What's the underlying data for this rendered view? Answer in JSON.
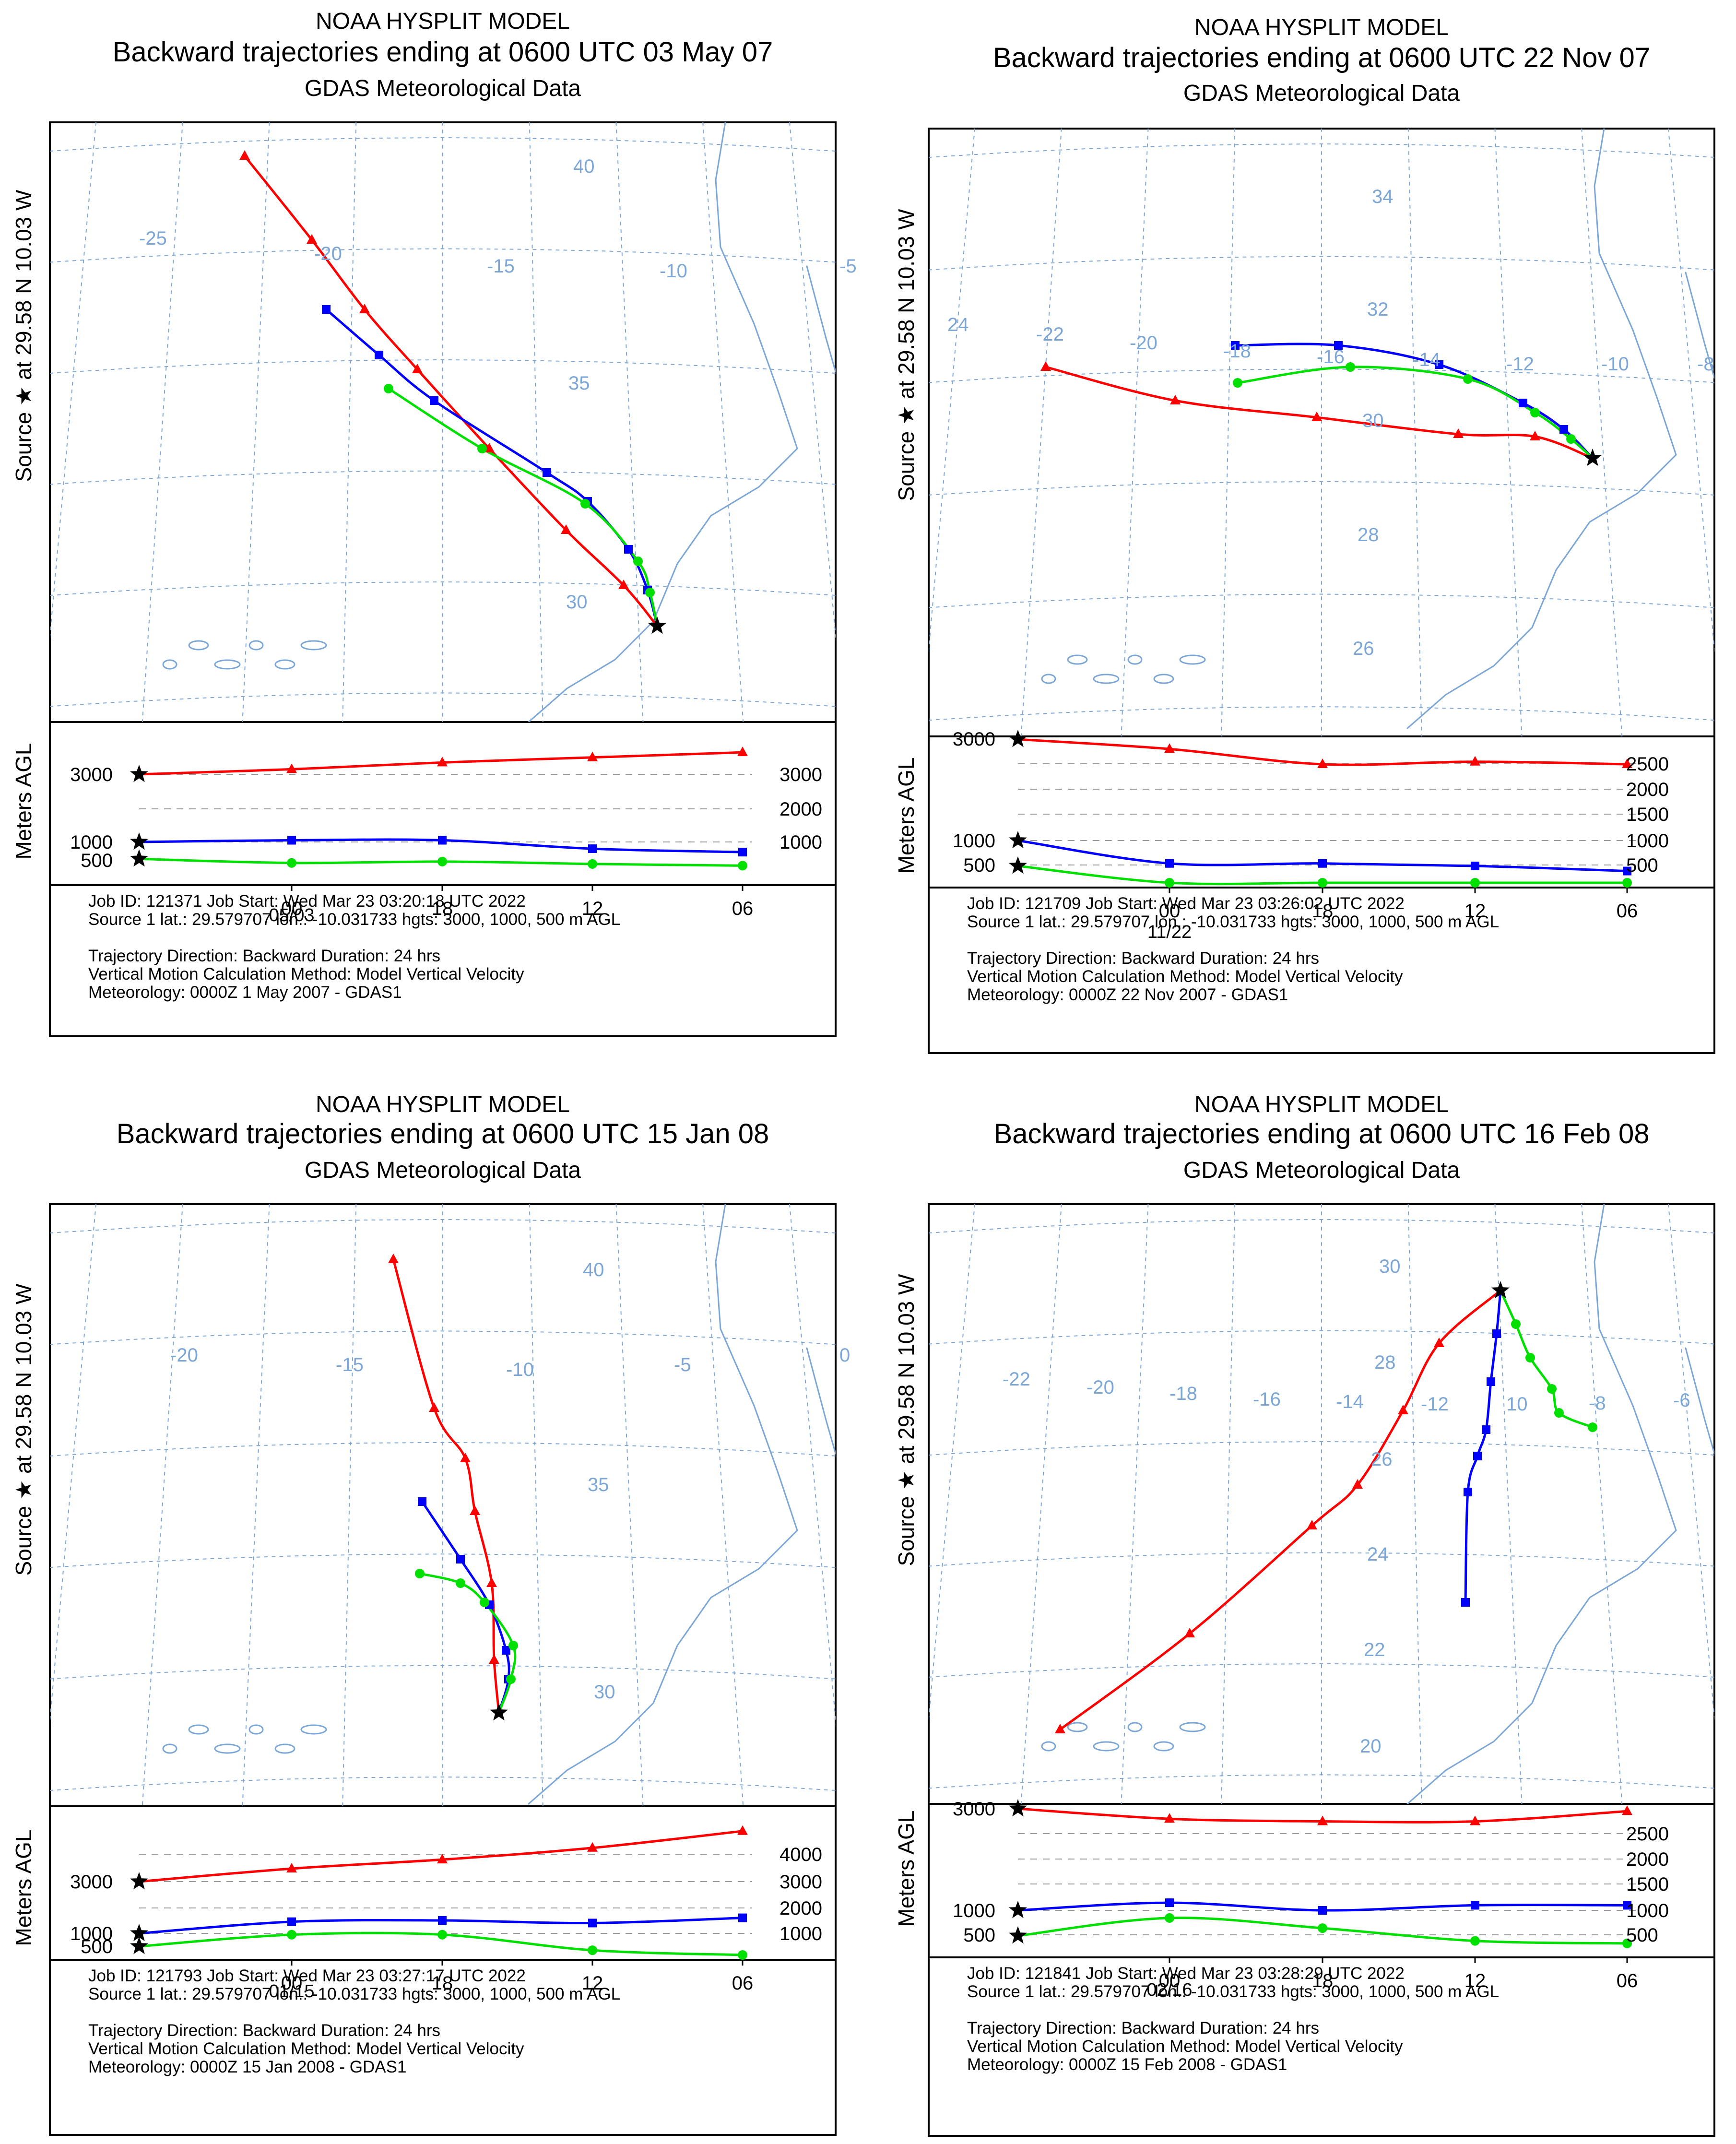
{
  "panels": [
    {
      "header": {
        "title": "NOAA HYSPLIT MODEL",
        "subtitle": "Backward trajectories ending at 0600 UTC 03 May 07",
        "data_source": "GDAS Meteorological Data"
      },
      "source_label": "Source ★ at 29.58 N 10.03 W",
      "ylabel": "Meters AGL",
      "lat_labels": [
        {
          "text": "40",
          "x": 1195,
          "y": 360
        },
        {
          "text": "35",
          "x": 1185,
          "y": 812
        },
        {
          "text": "30",
          "x": 1180,
          "y": 1268
        }
      ],
      "lon_labels": [
        {
          "text": "-25",
          "x": 290,
          "y": 510
        },
        {
          "text": "-20",
          "x": 655,
          "y": 542
        },
        {
          "text": "-15",
          "x": 1015,
          "y": 568
        },
        {
          "text": "-10",
          "x": 1375,
          "y": 578
        },
        {
          "text": "-5",
          "x": 1750,
          "y": 568
        }
      ],
      "left_ticks": [
        {
          "text": "3000",
          "y": 1614
        },
        {
          "text": "1000",
          "y": 1755
        },
        {
          "text": "500",
          "y": 1793
        }
      ],
      "right_ticks": [
        {
          "text": "3000",
          "y": 1614
        },
        {
          "text": "2000",
          "y": 1686
        },
        {
          "text": "1000",
          "y": 1755
        }
      ],
      "x_ticks": [
        {
          "text": "00",
          "x": 608
        },
        {
          "text": "18",
          "x": 922
        },
        {
          "text": "12",
          "x": 1235
        },
        {
          "text": "06",
          "x": 1548
        }
      ],
      "date_label": "05/03",
      "info": [
        "Job ID: 121371                    Job Start: Wed Mar 23 03:20:18 UTC 2022",
        "Source 1 lat.: 29.579707   lon.: -10.031733   hgts: 3000, 1000, 500 m AGL",
        "",
        "Trajectory Direction: Backward        Duration: 24 hrs",
        "Vertical Motion Calculation Method:           Model Vertical Velocity",
        "Meteorology: 0000Z  1 May 2007 - GDAS1"
      ],
      "colors": {
        "t3000": "#ff0000",
        "t1000": "#0000ff",
        "t500": "#00e000",
        "map": "#7ba6d6"
      }
    },
    {
      "header": {
        "title": "NOAA HYSPLIT MODEL",
        "subtitle": "Backward trajectories ending at 0600 UTC 22 Nov 07",
        "data_source": "GDAS Meteorological Data"
      },
      "source_label": "Source ★ at 29.58 N 10.03 W",
      "ylabel": "Meters AGL",
      "lat_labels": [
        {
          "text": "34",
          "x": 2860,
          "y": 423
        },
        {
          "text": "32",
          "x": 2850,
          "y": 658
        },
        {
          "text": "30",
          "x": 2840,
          "y": 890
        },
        {
          "text": "28",
          "x": 2830,
          "y": 1128
        },
        {
          "text": "26",
          "x": 2820,
          "y": 1365
        }
      ],
      "lon_labels": [
        {
          "text": "24",
          "x": 1975,
          "y": 690
        },
        {
          "text": "-22",
          "x": 2160,
          "y": 710
        },
        {
          "text": "-20",
          "x": 2355,
          "y": 728
        },
        {
          "text": "-18",
          "x": 2550,
          "y": 745
        },
        {
          "text": "-16",
          "x": 2745,
          "y": 757
        },
        {
          "text": "-14",
          "x": 2945,
          "y": 763
        },
        {
          "text": "-12",
          "x": 3140,
          "y": 772
        },
        {
          "text": "-10",
          "x": 3338,
          "y": 772
        },
        {
          "text": "-8",
          "x": 3538,
          "y": 772
        }
      ],
      "left_ticks": [
        {
          "text": "3000",
          "y": 1540
        },
        {
          "text": "1000",
          "y": 1752
        },
        {
          "text": "500",
          "y": 1803
        }
      ],
      "right_ticks": [
        {
          "text": "2500",
          "y": 1592
        },
        {
          "text": "2000",
          "y": 1645
        },
        {
          "text": "1500",
          "y": 1697
        },
        {
          "text": "1000",
          "y": 1752
        },
        {
          "text": "500",
          "y": 1803
        }
      ],
      "x_ticks": [
        {
          "text": "00",
          "x": 2438
        },
        {
          "text": "18",
          "x": 2757
        },
        {
          "text": "12",
          "x": 3075
        },
        {
          "text": "06",
          "x": 3392
        }
      ],
      "date_label": "11/22",
      "info": [
        "Job ID: 121709                    Job Start: Wed Mar 23 03:26:02 UTC 2022",
        "Source 1 lat.: 29.579707   lon.: -10.031733   hgts: 3000, 1000, 500 m AGL",
        "",
        "Trajectory Direction: Backward        Duration: 24 hrs",
        "Vertical Motion Calculation Method:           Model Vertical Velocity",
        "Meteorology: 0000Z 22 Nov 2007 - GDAS1"
      ],
      "colors": {
        "t3000": "#ff0000",
        "t1000": "#0000ff",
        "t500": "#00e000",
        "map": "#7ba6d6"
      }
    },
    {
      "header": {
        "title": "NOAA HYSPLIT MODEL",
        "subtitle": "Backward trajectories ending at 0600 UTC 15 Jan 08",
        "data_source": "GDAS Meteorological Data"
      },
      "source_label": "Source ★ at 29.58 N 10.03 W",
      "ylabel": "Meters AGL",
      "lat_labels": [
        {
          "text": "40",
          "x": 1215,
          "y": 2660
        },
        {
          "text": "35",
          "x": 1225,
          "y": 3108
        },
        {
          "text": "30",
          "x": 1238,
          "y": 3540
        }
      ],
      "lon_labels": [
        {
          "text": "-20",
          "x": 355,
          "y": 2838
        },
        {
          "text": "-15",
          "x": 700,
          "y": 2858
        },
        {
          "text": "-10",
          "x": 1055,
          "y": 2868
        },
        {
          "text": "-5",
          "x": 1405,
          "y": 2858
        },
        {
          "text": "0",
          "x": 1750,
          "y": 2838
        }
      ],
      "left_ticks": [
        {
          "text": "3000",
          "y": 3922
        },
        {
          "text": "1000",
          "y": 4030
        },
        {
          "text": "500",
          "y": 4057
        }
      ],
      "right_ticks": [
        {
          "text": "4000",
          "y": 3865
        },
        {
          "text": "3000",
          "y": 3922
        },
        {
          "text": "2000",
          "y": 3977
        },
        {
          "text": "1000",
          "y": 4030
        }
      ],
      "x_ticks": [
        {
          "text": "00",
          "x": 608
        },
        {
          "text": "18",
          "x": 922
        },
        {
          "text": "12",
          "x": 1235
        },
        {
          "text": "06",
          "x": 1548
        }
      ],
      "date_label": "01/15",
      "info": [
        "Job ID: 121793                    Job Start: Wed Mar 23 03:27:17 UTC 2022",
        "Source 1 lat.: 29.579707   lon.: -10.031733   hgts: 3000, 1000, 500 m AGL",
        "",
        "Trajectory Direction: Backward        Duration: 24 hrs",
        "Vertical Motion Calculation Method:           Model Vertical Velocity",
        "Meteorology: 0000Z 15 Jan 2008 - GDAS1"
      ],
      "colors": {
        "t3000": "#ff0000",
        "t1000": "#0000ff",
        "t500": "#00e000",
        "map": "#7ba6d6"
      }
    },
    {
      "header": {
        "title": "NOAA HYSPLIT MODEL",
        "subtitle": "Backward trajectories ending at 0600 UTC 16 Feb 08",
        "data_source": "GDAS Meteorological Data"
      },
      "source_label": "Source ★ at 29.58 N 10.03 W",
      "ylabel": "Meters AGL",
      "lat_labels": [
        {
          "text": "30",
          "x": 2875,
          "y": 2653
        },
        {
          "text": "28",
          "x": 2865,
          "y": 2853
        },
        {
          "text": "26",
          "x": 2858,
          "y": 3055
        },
        {
          "text": "24",
          "x": 2850,
          "y": 3253
        },
        {
          "text": "22",
          "x": 2843,
          "y": 3452
        },
        {
          "text": "20",
          "x": 2835,
          "y": 3653
        }
      ],
      "lon_labels": [
        {
          "text": "-22",
          "x": 2090,
          "y": 2888
        },
        {
          "text": "-20",
          "x": 2265,
          "y": 2905
        },
        {
          "text": "-18",
          "x": 2438,
          "y": 2918
        },
        {
          "text": "-16",
          "x": 2612,
          "y": 2930
        },
        {
          "text": "-14",
          "x": 2785,
          "y": 2935
        },
        {
          "text": "-12",
          "x": 2962,
          "y": 2940
        },
        {
          "text": "10",
          "x": 3140,
          "y": 2940
        },
        {
          "text": "-8",
          "x": 3312,
          "y": 2938
        },
        {
          "text": "-6",
          "x": 3488,
          "y": 2932
        }
      ],
      "left_ticks": [
        {
          "text": "3000",
          "y": 3770
        },
        {
          "text": "1000",
          "y": 3982
        },
        {
          "text": "500",
          "y": 4033
        }
      ],
      "right_ticks": [
        {
          "text": "2500",
          "y": 3822
        },
        {
          "text": "2000",
          "y": 3875
        },
        {
          "text": "1500",
          "y": 3927
        },
        {
          "text": "1000",
          "y": 3982
        },
        {
          "text": "500",
          "y": 4033
        }
      ],
      "x_ticks": [
        {
          "text": "00",
          "x": 2438
        },
        {
          "text": "18",
          "x": 2757
        },
        {
          "text": "12",
          "x": 3075
        },
        {
          "text": "06",
          "x": 3392
        }
      ],
      "date_label": "02/16",
      "info": [
        "Job ID: 121841                    Job Start: Wed Mar 23 03:28:29 UTC 2022",
        "Source 1 lat.: 29.579707   lon.: -10.031733   hgts: 3000, 1000, 500 m AGL",
        "",
        "Trajectory Direction: Backward        Duration: 24 hrs",
        "Vertical Motion Calculation Method:           Model Vertical Velocity",
        "Meteorology: 0000Z 15 Feb 2008 - GDAS1"
      ],
      "colors": {
        "t3000": "#ff0000",
        "t1000": "#0000ff",
        "t500": "#00e000",
        "map": "#7ba6d6"
      }
    }
  ],
  "chart_data": [
    {
      "type": "line",
      "title": "Backward trajectories ending at 0600 UTC 03 May 07",
      "source": {
        "lat": 29.58,
        "lon": -10.03
      },
      "x": [
        "06",
        "00",
        "18",
        "12",
        "06"
      ],
      "ylabel": "Meters AGL",
      "series": [
        {
          "name": "3000 m AGL",
          "height": [
            3000,
            3150,
            3350,
            3500,
            3650
          ]
        },
        {
          "name": "1000 m AGL",
          "height": [
            1000,
            1050,
            1050,
            800,
            700
          ]
        },
        {
          "name": "500 m AGL",
          "height": [
            500,
            380,
            420,
            350,
            300
          ]
        }
      ]
    },
    {
      "type": "line",
      "title": "Backward trajectories ending at 0600 UTC 22 Nov 07",
      "source": {
        "lat": 29.58,
        "lon": -10.03
      },
      "x": [
        "06",
        "00",
        "18",
        "12",
        "06"
      ],
      "ylabel": "Meters AGL",
      "series": [
        {
          "name": "3000 m AGL",
          "height": [
            3000,
            2800,
            2500,
            2550,
            2500
          ]
        },
        {
          "name": "1000 m AGL",
          "height": [
            1000,
            550,
            550,
            500,
            400
          ]
        },
        {
          "name": "500 m AGL",
          "height": [
            500,
            80,
            80,
            80,
            80
          ]
        }
      ]
    },
    {
      "type": "line",
      "title": "Backward trajectories ending at 0600 UTC 15 Jan 08",
      "source": {
        "lat": 29.58,
        "lon": -10.03
      },
      "x": [
        "06",
        "00",
        "18",
        "12",
        "06"
      ],
      "ylabel": "Meters AGL",
      "series": [
        {
          "name": "3000 m AGL",
          "height": [
            3000,
            3500,
            3850,
            4300,
            4950
          ]
        },
        {
          "name": "1000 m AGL",
          "height": [
            1000,
            1450,
            1500,
            1400,
            1600
          ]
        },
        {
          "name": "500 m AGL",
          "height": [
            500,
            950,
            950,
            350,
            150
          ]
        }
      ]
    },
    {
      "type": "line",
      "title": "Backward trajectories ending at 0600 UTC 16 Feb 08",
      "source": {
        "lat": 29.58,
        "lon": -10.03
      },
      "x": [
        "06",
        "00",
        "18",
        "12",
        "06"
      ],
      "ylabel": "Meters AGL",
      "series": [
        {
          "name": "3000 m AGL",
          "height": [
            3000,
            2800,
            2750,
            2750,
            2950
          ]
        },
        {
          "name": "1000 m AGL",
          "height": [
            1000,
            1150,
            1000,
            1100,
            1100
          ]
        },
        {
          "name": "500 m AGL",
          "height": [
            500,
            850,
            650,
            400,
            350
          ]
        }
      ]
    }
  ]
}
